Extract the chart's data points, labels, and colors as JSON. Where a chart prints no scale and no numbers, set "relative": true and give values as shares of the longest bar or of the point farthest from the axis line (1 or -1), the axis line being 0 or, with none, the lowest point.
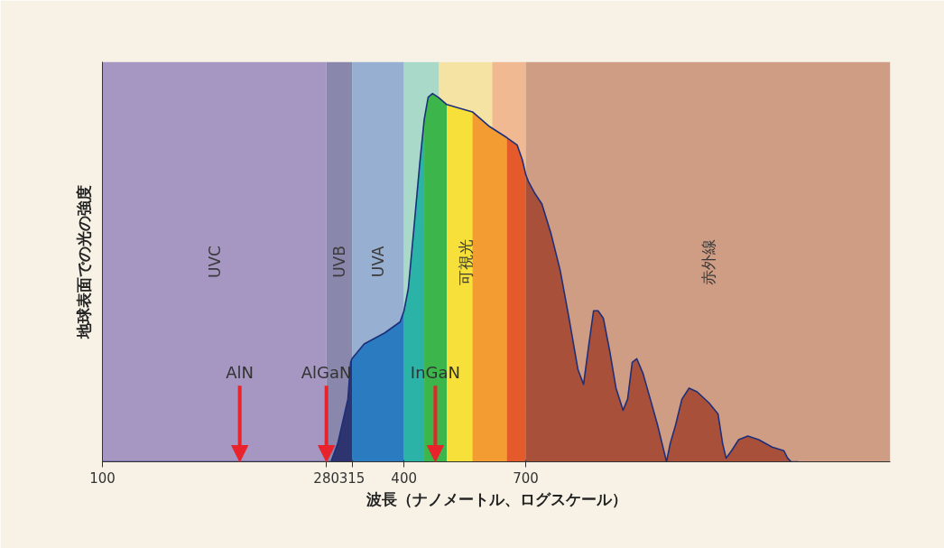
{
  "chart_data": {
    "type": "area",
    "relative": true,
    "log": "x",
    "xlabel": "波長（ナノメートル、ログスケール）",
    "ylabel": "地球表面での光の強度",
    "xlim": [
      100,
      3740
    ],
    "xticks": [
      100,
      280,
      315,
      400,
      700
    ],
    "bands": [
      {
        "axis": "x",
        "from": 100,
        "to": 280,
        "label": "UVC",
        "color": "#a597c1"
      },
      {
        "axis": "x",
        "from": 280,
        "to": 315,
        "label": "UVB",
        "color": "#8a87ac"
      },
      {
        "axis": "x",
        "from": 315,
        "to": 400,
        "label": "UVA",
        "color": "#97afd0"
      },
      {
        "axis": "x",
        "from": 400,
        "to": 470,
        "color": "#a9d9c9"
      },
      {
        "axis": "x",
        "from": 470,
        "to": 600,
        "label": "可視光",
        "color": "#f4e3a2"
      },
      {
        "axis": "x",
        "from": 600,
        "to": 700,
        "color": "#f0b992"
      },
      {
        "axis": "x",
        "from": 700,
        "to": 3740,
        "label": "赤外線",
        "color": "#cf9c84"
      }
    ],
    "series": [
      {
        "color": "#2e3470",
        "x": [
          100,
          280,
          286,
          295,
          309,
          313,
          315
        ],
        "values": [
          0,
          0,
          0,
          0.05,
          0.17,
          0.27,
          0.28
        ]
      },
      {
        "color": "#2a7bc0",
        "x": [
          315,
          333,
          366,
          393,
          400
        ],
        "values": [
          0.28,
          0.32,
          0.35,
          0.38,
          0.41
        ]
      },
      {
        "color": "#2bb3a8",
        "x": [
          400,
          408,
          419,
          430,
          439
        ],
        "values": [
          0.41,
          0.47,
          0.64,
          0.81,
          0.93
        ]
      },
      {
        "color": "#3cb54a",
        "x": [
          439,
          447,
          456,
          468,
          487
        ],
        "values": [
          0.93,
          0.99,
          1,
          0.99,
          0.97
        ]
      },
      {
        "color": "#f7e03a",
        "x": [
          487,
          517,
          548
        ],
        "values": [
          0.97,
          0.96,
          0.95
        ]
      },
      {
        "color": "#f39c32",
        "x": [
          548,
          593,
          642
        ],
        "values": [
          0.95,
          0.91,
          0.88
        ]
      },
      {
        "color": "#e55a2b",
        "x": [
          642,
          673,
          689,
          700
        ],
        "values": [
          0.88,
          0.86,
          0.82,
          0.78
        ]
      },
      {
        "type": "line",
        "color": "#1d2f7a",
        "x": [
          100,
          280,
          286,
          295,
          309,
          313,
          315,
          333,
          366,
          393,
          400,
          408,
          419,
          430,
          439,
          447,
          456,
          468,
          487,
          517,
          548,
          593,
          642,
          673,
          689,
          700,
          709,
          729,
          754,
          786,
          820,
          854,
          890,
          913,
          936,
          956,
          976,
          1000,
          1030,
          1060,
          1095,
          1118,
          1142,
          1166,
          1200,
          1241,
          1283,
          1315,
          1337,
          1360,
          1394,
          1435,
          1483,
          1539,
          1625,
          1694,
          1730,
          1758,
          1803,
          1863,
          1943,
          2042,
          2173,
          2293,
          2332,
          2371,
          2451
        ],
        "values": [
          0,
          0,
          0,
          0.05,
          0.17,
          0.27,
          0.28,
          0.32,
          0.35,
          0.38,
          0.41,
          0.47,
          0.64,
          0.81,
          0.93,
          0.99,
          1,
          0.99,
          0.97,
          0.96,
          0.95,
          0.91,
          0.88,
          0.86,
          0.82,
          0.78,
          0.76,
          0.73,
          0.7,
          0.62,
          0.52,
          0.39,
          0.25,
          0.21,
          0.32,
          0.41,
          0.41,
          0.39,
          0.3,
          0.2,
          0.14,
          0.17,
          0.27,
          0.28,
          0.24,
          0.17,
          0.1,
          0.04,
          0,
          0.05,
          0.1,
          0.17,
          0.2,
          0.19,
          0.16,
          0.13,
          0.05,
          0.01,
          0.03,
          0.06,
          0.07,
          0.06,
          0.04,
          0.03,
          0.01,
          0,
          0
        ]
      },
      {
        "color": "#a8503a",
        "x": [
          700,
          709,
          729,
          754,
          786,
          820,
          854,
          890,
          913,
          936,
          956,
          976,
          1000,
          1030,
          1060,
          1095,
          1118,
          1142,
          1166,
          1200,
          1241,
          1283,
          1315,
          1337,
          1360,
          1394,
          1435,
          1483,
          1539,
          1625,
          1694,
          1730,
          1758,
          1803,
          1863,
          1943,
          2042,
          2173,
          2293,
          2332,
          2371,
          2451
        ],
        "values": [
          0.78,
          0.76,
          0.73,
          0.7,
          0.62,
          0.52,
          0.39,
          0.25,
          0.21,
          0.32,
          0.41,
          0.41,
          0.39,
          0.3,
          0.2,
          0.14,
          0.17,
          0.27,
          0.28,
          0.24,
          0.17,
          0.1,
          0.04,
          0,
          0.05,
          0.1,
          0.17,
          0.2,
          0.19,
          0.16,
          0.13,
          0.05,
          0.01,
          0.03,
          0.06,
          0.07,
          0.06,
          0.04,
          0.03,
          0.01,
          0,
          0
        ]
      }
    ],
    "annotations": [
      {
        "text": "AlN",
        "x": 188,
        "y": 0
      },
      {
        "text": "AlGaN",
        "x": 280,
        "y": 0
      },
      {
        "text": "InGaN",
        "x": 462,
        "y": 0
      }
    ]
  }
}
